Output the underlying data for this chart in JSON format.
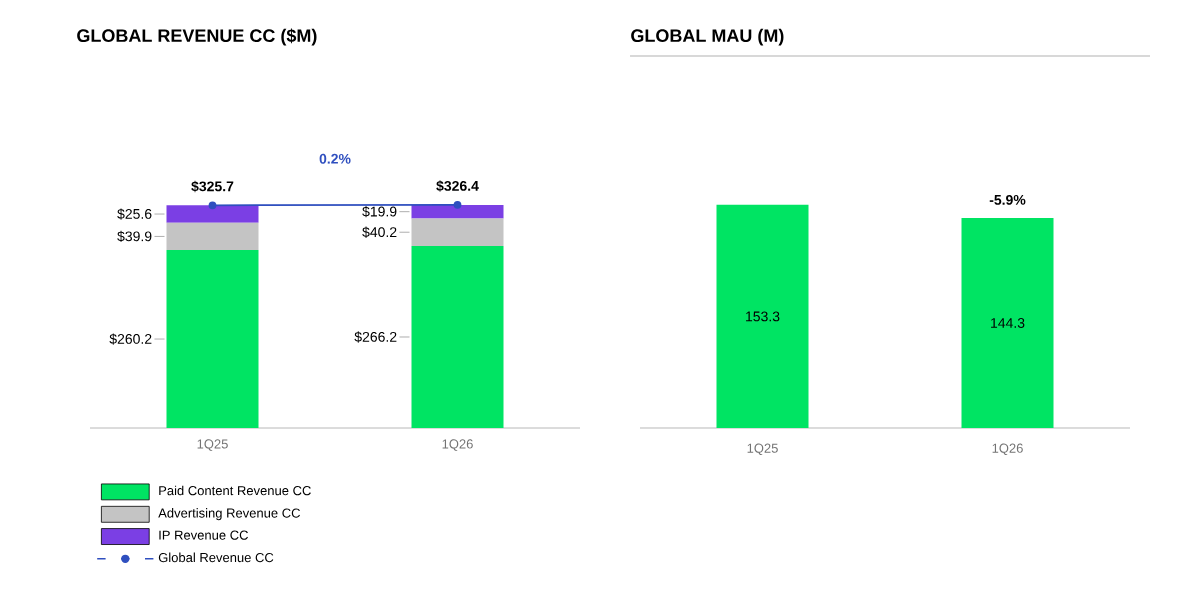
{
  "chart_data": [
    {
      "type": "bar",
      "title": "GLOBAL REVENUE CC ($M)",
      "categories": [
        "1Q25",
        "1Q26"
      ],
      "stacked": true,
      "legend": "bottom",
      "series": [
        {
          "name": "Paid Content Revenue CC",
          "color": "#00e463",
          "values": [
            260.2,
            266.2
          ],
          "value_labels": [
            "$260.2",
            "$266.2"
          ]
        },
        {
          "name": "Advertising Revenue CC",
          "color": "#c4c4c4",
          "values": [
            39.9,
            40.2
          ],
          "value_labels": [
            "$39.9",
            "$40.2"
          ]
        },
        {
          "name": "IP Revenue CC",
          "color": "#7b3fe4",
          "values": [
            25.6,
            19.9
          ],
          "value_labels": [
            "$25.6",
            "$19.9"
          ]
        },
        {
          "name": "Global Revenue CC",
          "type": "line",
          "marker": "circle",
          "color": "#2f4fbf",
          "values": [
            325.7,
            326.4
          ],
          "value_labels": [
            "$325.7",
            "$326.4"
          ]
        }
      ],
      "annotations": [
        "0.2%"
      ]
    },
    {
      "type": "bar",
      "title": "GLOBAL MAU (M)",
      "categories": [
        "1Q25",
        "1Q26"
      ],
      "values": [
        153.3,
        144.3
      ],
      "color": "#00e463",
      "data_labels": true,
      "annotations": [
        {
          "text": "-5.9%",
          "x": "1Q26",
          "y": 144.3
        }
      ]
    }
  ]
}
